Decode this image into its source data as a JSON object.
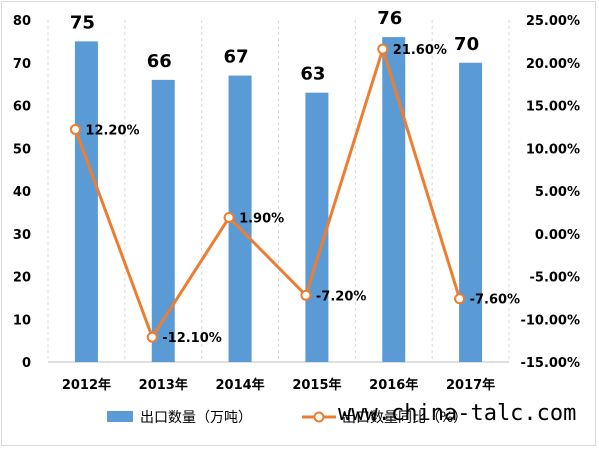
{
  "chart_data": {
    "type": "bar",
    "categories": [
      "2012年",
      "2013年",
      "2014年",
      "2015年",
      "2016年",
      "2017年"
    ],
    "series": [
      {
        "name": "出口数量（万吨）",
        "type": "bar",
        "axis": "left",
        "values": [
          75,
          66,
          67,
          63,
          76,
          70
        ],
        "value_labels": [
          "75",
          "66",
          "67",
          "63",
          "76",
          "70"
        ],
        "color": "#5b9bd5"
      },
      {
        "name": "出口数量同比（%）",
        "type": "line",
        "axis": "right",
        "values": [
          12.2,
          -12.1,
          1.9,
          -7.2,
          21.6,
          -7.6
        ],
        "value_labels": [
          "12.20%",
          "-12.10%",
          "1.90%",
          "-7.20%",
          "21.60%",
          "-7.60%"
        ],
        "color": "#ed7d31"
      }
    ],
    "y_left": {
      "min": 0,
      "max": 80,
      "ticks": [
        "0",
        "10",
        "20",
        "30",
        "40",
        "50",
        "60",
        "70",
        "80"
      ]
    },
    "y_right": {
      "min": -15,
      "max": 25,
      "ticks": [
        "-15.00%",
        "-10.00%",
        "-5.00%",
        "0.00%",
        "5.00%",
        "10.00%",
        "15.00%",
        "20.00%",
        "25.00%"
      ]
    },
    "legend_position": "bottom",
    "grid": "vertical-dashed"
  },
  "watermark": "www.china-talc.com"
}
